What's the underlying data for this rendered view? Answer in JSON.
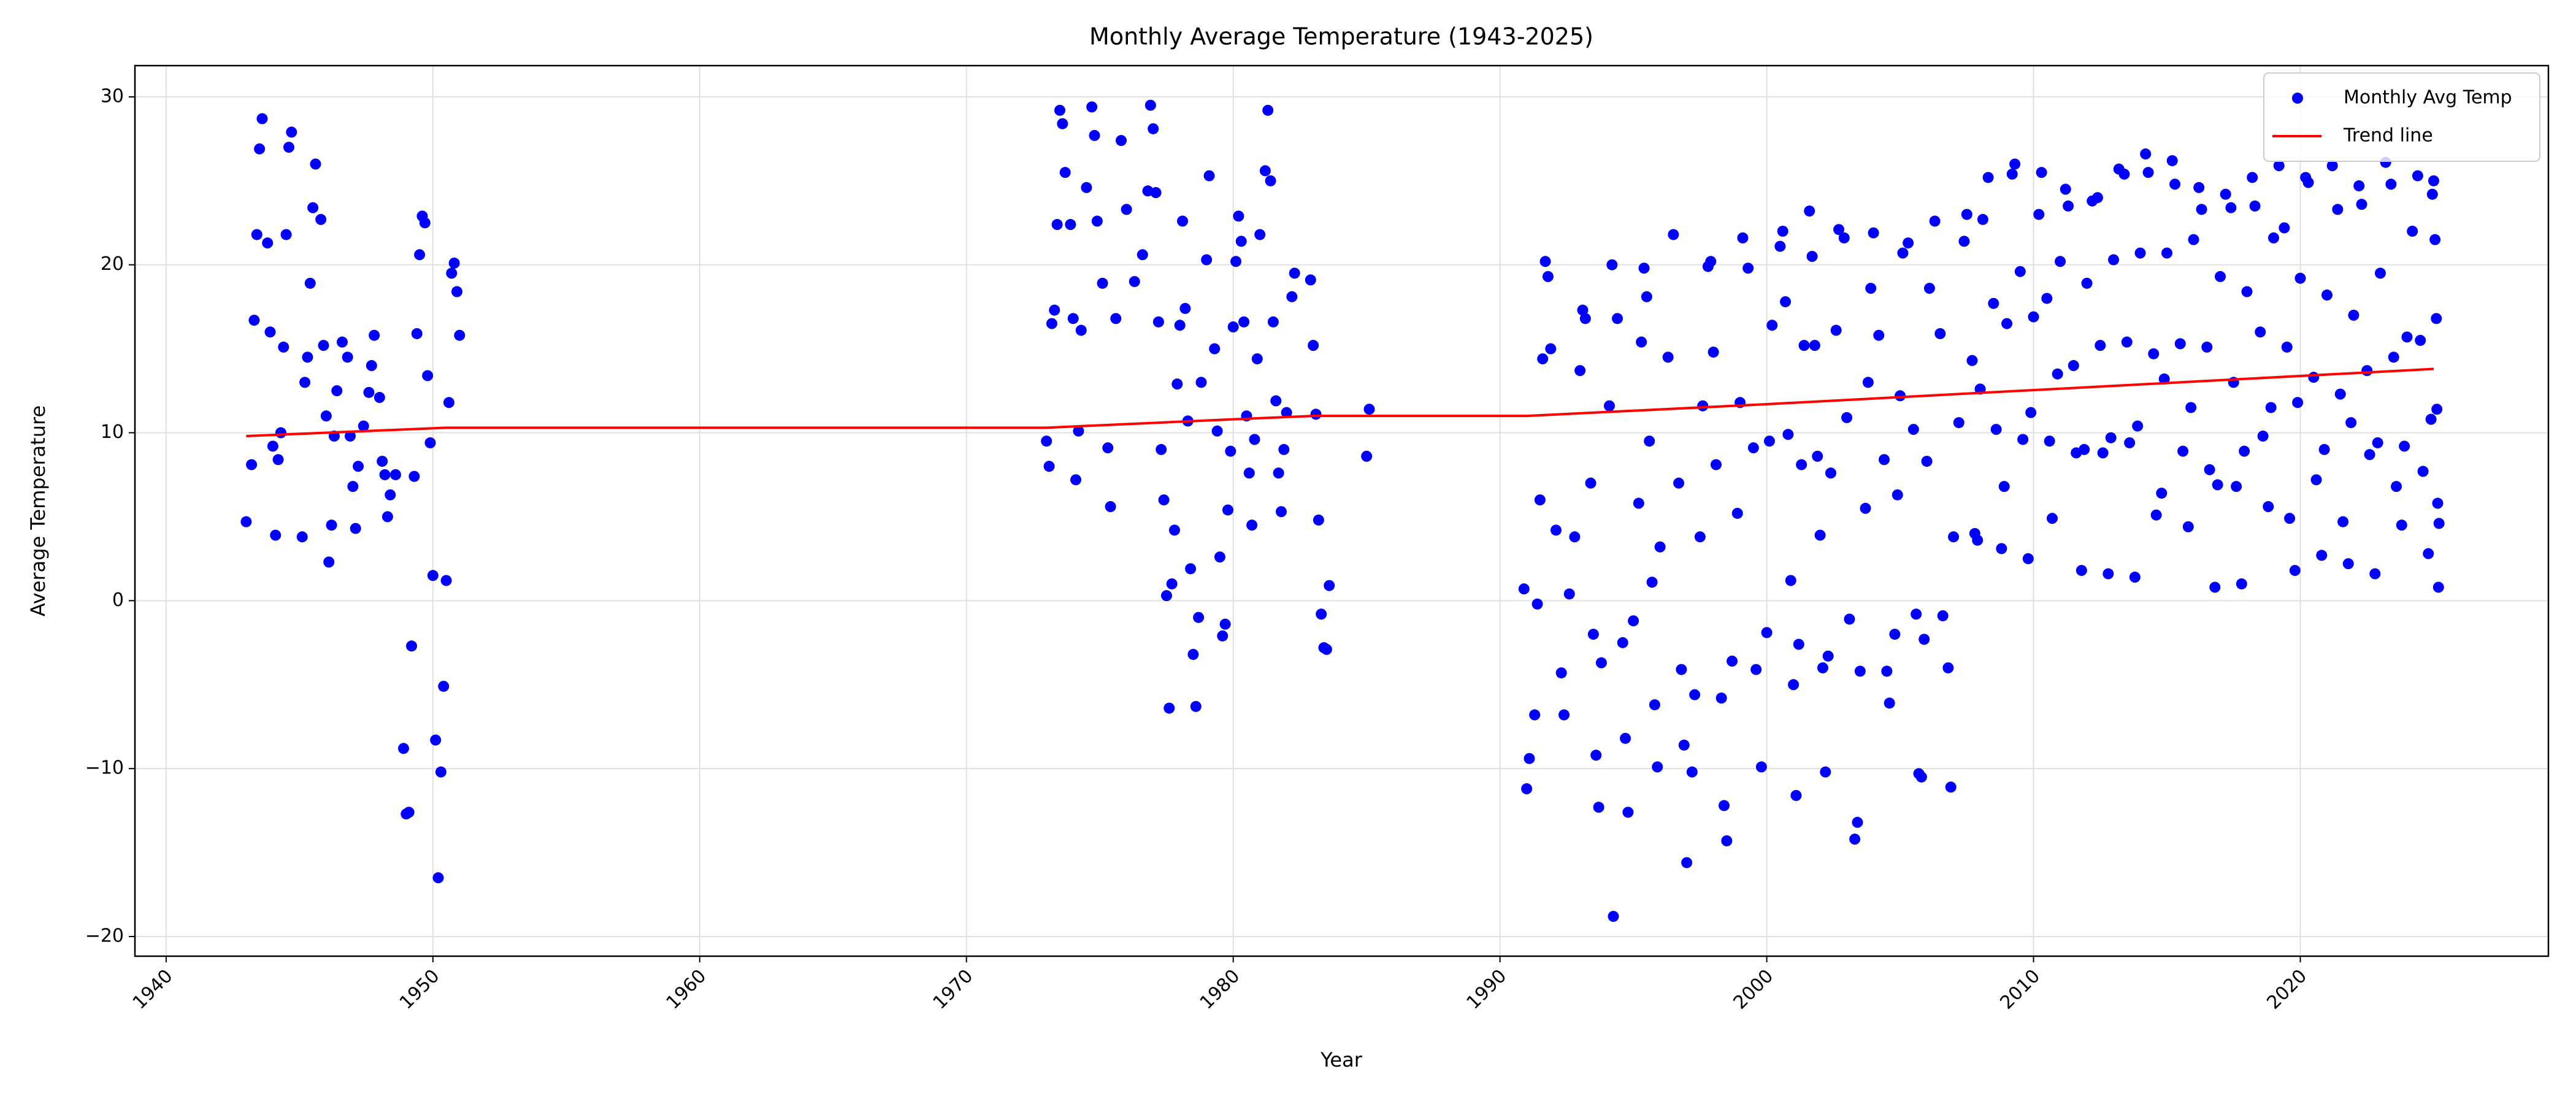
{
  "chart_data": {
    "type": "scatter",
    "title": "Monthly Average Temperature (1943-2025)",
    "x_label": "Year",
    "y_label": "Average Temperature",
    "xlim": [
      1938.83,
      2029.3
    ],
    "ylim": [
      -21.17,
      31.86
    ],
    "xticks": [
      1940,
      1950,
      1960,
      1970,
      1980,
      1990,
      2000,
      2010,
      2020
    ],
    "yticks": [
      {
        "value": -20,
        "label": "−20"
      },
      {
        "value": -10,
        "label": "−10"
      },
      0,
      10,
      20,
      30
    ],
    "grid": true,
    "legend": "upper right",
    "series": [
      {
        "name": "Monthly Avg Temp",
        "type": "scatter",
        "color": "#0000ff",
        "x": [
          1943.0,
          1943.2,
          1943.3,
          1943.4,
          1943.5,
          1943.6,
          1943.8,
          1943.9,
          1944.0,
          1944.1,
          1944.2,
          1944.3,
          1944.4,
          1944.5,
          1944.6,
          1944.7,
          1945.1,
          1945.2,
          1945.3,
          1945.4,
          1945.5,
          1945.6,
          1945.8,
          1945.9,
          1946.0,
          1946.1,
          1946.2,
          1946.3,
          1946.4,
          1946.6,
          1946.8,
          1946.9,
          1947.0,
          1947.1,
          1947.2,
          1947.4,
          1947.6,
          1947.7,
          1947.8,
          1948.0,
          1948.1,
          1948.2,
          1948.3,
          1948.4,
          1948.6,
          1948.9,
          1949.0,
          1949.1,
          1949.2,
          1949.3,
          1949.4,
          1949.5,
          1949.6,
          1949.7,
          1949.8,
          1949.9,
          1950.0,
          1950.1,
          1950.2,
          1950.3,
          1950.4,
          1950.5,
          1950.6,
          1950.7,
          1950.8,
          1950.9,
          1951.0,
          1973.0,
          1973.1,
          1973.2,
          1973.3,
          1973.4,
          1973.5,
          1973.6,
          1973.7,
          1973.9,
          1974.0,
          1974.1,
          1974.2,
          1974.3,
          1974.5,
          1974.7,
          1974.8,
          1974.9,
          1975.1,
          1975.3,
          1975.4,
          1975.6,
          1975.8,
          1976.0,
          1976.3,
          1976.6,
          1976.8,
          1976.9,
          1977.0,
          1977.1,
          1977.2,
          1977.3,
          1977.4,
          1977.5,
          1977.6,
          1977.7,
          1977.8,
          1977.9,
          1978.0,
          1978.1,
          1978.2,
          1978.3,
          1978.4,
          1978.5,
          1978.6,
          1978.7,
          1978.8,
          1979.0,
          1979.1,
          1979.3,
          1979.4,
          1979.5,
          1979.6,
          1979.7,
          1979.8,
          1979.9,
          1980.0,
          1980.1,
          1980.2,
          1980.3,
          1980.4,
          1980.5,
          1980.6,
          1980.7,
          1980.8,
          1980.9,
          1981.0,
          1981.2,
          1981.3,
          1981.4,
          1981.5,
          1981.6,
          1981.7,
          1981.8,
          1981.9,
          1982.0,
          1982.2,
          1982.3,
          1982.9,
          1983.0,
          1983.1,
          1983.2,
          1983.3,
          1983.4,
          1983.5,
          1983.6,
          1985.0,
          1985.1,
          1990.9,
          1991.0,
          1991.1,
          1991.3,
          1991.4,
          1991.5,
          1991.6,
          1991.7,
          1991.8,
          1991.9,
          1992.1,
          1992.3,
          1992.4,
          1992.6,
          1992.8,
          1993.0,
          1993.1,
          1993.2,
          1993.4,
          1993.5,
          1993.6,
          1993.7,
          1993.8,
          1994.1,
          1994.2,
          1994.25,
          1994.4,
          1994.6,
          1994.7,
          1994.8,
          1995.0,
          1995.2,
          1995.3,
          1995.4,
          1995.5,
          1995.6,
          1995.7,
          1995.8,
          1995.9,
          1996.0,
          1996.3,
          1996.5,
          1996.7,
          1996.8,
          1996.9,
          1997.0,
          1997.2,
          1997.3,
          1997.5,
          1997.6,
          1997.8,
          1997.9,
          1998.0,
          1998.1,
          1998.3,
          1998.4,
          1998.5,
          1998.7,
          1998.9,
          1999.0,
          1999.1,
          1999.3,
          1999.5,
          1999.6,
          1999.8,
          2000.0,
          2000.1,
          2000.2,
          2000.5,
          2000.6,
          2000.7,
          2000.8,
          2000.9,
          2001.0,
          2001.1,
          2001.2,
          2001.3,
          2001.4,
          2001.6,
          2001.7,
          2001.8,
          2001.9,
          2002.0,
          2002.1,
          2002.2,
          2002.3,
          2002.4,
          2002.6,
          2002.7,
          2002.9,
          2003.0,
          2003.1,
          2003.3,
          2003.4,
          2003.5,
          2003.7,
          2003.8,
          2003.9,
          2004.0,
          2004.2,
          2004.4,
          2004.5,
          2004.6,
          2004.8,
          2004.9,
          2005.0,
          2005.1,
          2005.3,
          2005.5,
          2005.6,
          2005.7,
          2005.8,
          2005.9,
          2006.0,
          2006.1,
          2006.3,
          2006.5,
          2006.6,
          2006.8,
          2006.9,
          2007.0,
          2007.2,
          2007.4,
          2007.5,
          2007.7,
          2007.8,
          2007.9,
          2008.0,
          2008.1,
          2008.3,
          2008.5,
          2008.6,
          2008.8,
          2008.9,
          2009.0,
          2009.2,
          2009.3,
          2009.5,
          2009.6,
          2009.8,
          2009.9,
          2010.0,
          2010.2,
          2010.3,
          2010.5,
          2010.6,
          2010.7,
          2010.9,
          2011.0,
          2011.2,
          2011.3,
          2011.5,
          2011.6,
          2011.8,
          2011.9,
          2012.0,
          2012.2,
          2012.4,
          2012.5,
          2012.6,
          2012.8,
          2012.9,
          2013.0,
          2013.2,
          2013.4,
          2013.5,
          2013.6,
          2013.8,
          2013.9,
          2014.0,
          2014.2,
          2014.3,
          2014.5,
          2014.6,
          2014.8,
          2014.9,
          2015.0,
          2015.2,
          2015.3,
          2015.5,
          2015.6,
          2015.8,
          2015.9,
          2016.0,
          2016.2,
          2016.3,
          2016.5,
          2016.6,
          2016.8,
          2016.9,
          2017.0,
          2017.2,
          2017.4,
          2017.5,
          2017.6,
          2017.8,
          2017.9,
          2018.0,
          2018.2,
          2018.3,
          2018.5,
          2018.6,
          2018.8,
          2018.9,
          2019.0,
          2019.2,
          2019.4,
          2019.5,
          2019.6,
          2019.8,
          2019.9,
          2020.0,
          2020.2,
          2020.3,
          2020.5,
          2020.6,
          2020.8,
          2020.9,
          2021.0,
          2021.2,
          2021.4,
          2021.5,
          2021.6,
          2021.8,
          2021.9,
          2022.0,
          2022.2,
          2022.3,
          2022.5,
          2022.6,
          2022.8,
          2022.9,
          2023.0,
          2023.2,
          2023.4,
          2023.5,
          2023.6,
          2023.8,
          2023.9,
          2024.0,
          2024.2,
          2024.4,
          2024.5,
          2024.6,
          2024.8,
          2024.9,
          2024.95,
          2025.0,
          2025.05,
          2025.1,
          2025.12,
          2025.15,
          2025.18,
          2025.2
        ],
        "values": [
          4.7,
          8.1,
          16.7,
          21.8,
          26.9,
          28.7,
          21.3,
          16.0,
          9.2,
          3.9,
          8.4,
          10.0,
          15.1,
          21.8,
          27.0,
          27.9,
          3.8,
          13.0,
          14.5,
          18.9,
          23.4,
          26.0,
          22.7,
          15.2,
          11.0,
          2.3,
          4.5,
          9.8,
          12.5,
          15.4,
          14.5,
          9.8,
          6.8,
          4.3,
          8.0,
          10.4,
          12.4,
          14.0,
          15.8,
          12.1,
          8.3,
          7.5,
          5.0,
          6.3,
          7.5,
          -8.8,
          -12.7,
          -12.6,
          -2.7,
          7.4,
          15.9,
          20.6,
          22.9,
          22.5,
          13.4,
          9.4,
          1.5,
          -8.3,
          -16.5,
          -10.2,
          -5.1,
          1.2,
          11.8,
          19.5,
          20.1,
          18.4,
          15.8,
          9.5,
          8.0,
          16.5,
          17.3,
          22.4,
          29.2,
          28.4,
          25.5,
          22.4,
          16.8,
          7.2,
          10.1,
          16.1,
          24.6,
          29.4,
          27.7,
          22.6,
          18.9,
          9.1,
          5.6,
          16.8,
          27.4,
          23.3,
          19.0,
          20.6,
          24.4,
          29.5,
          28.1,
          24.3,
          16.6,
          9.0,
          6.0,
          0.3,
          -6.4,
          1.0,
          4.2,
          12.9,
          16.4,
          22.6,
          17.4,
          10.7,
          1.9,
          -3.2,
          -6.3,
          -1.0,
          13.0,
          20.3,
          25.3,
          15.0,
          10.1,
          2.6,
          -2.1,
          -1.4,
          5.4,
          8.9,
          16.3,
          20.2,
          22.9,
          21.4,
          16.6,
          11.0,
          7.6,
          4.5,
          9.6,
          14.4,
          21.8,
          25.6,
          29.2,
          25.0,
          16.6,
          11.9,
          7.6,
          5.3,
          9.0,
          11.2,
          18.1,
          19.5,
          19.1,
          15.2,
          11.1,
          4.8,
          -0.8,
          -2.8,
          -2.9,
          0.9,
          8.6,
          11.4,
          0.7,
          -11.2,
          -9.4,
          -6.8,
          -0.2,
          6.0,
          14.4,
          20.2,
          19.3,
          15.0,
          4.2,
          -4.3,
          -6.8,
          0.4,
          3.8,
          13.7,
          17.3,
          16.8,
          7.0,
          -2.0,
          -9.2,
          -12.3,
          -3.7,
          11.6,
          20.0,
          -18.8,
          16.8,
          -2.5,
          -8.2,
          -12.6,
          -1.2,
          5.8,
          15.4,
          19.8,
          18.1,
          9.5,
          1.1,
          -6.2,
          -9.9,
          3.2,
          14.5,
          21.8,
          7.0,
          -4.1,
          -8.6,
          -15.6,
          -10.2,
          -5.6,
          3.8,
          11.6,
          19.9,
          20.2,
          14.8,
          8.1,
          -5.8,
          -12.2,
          -14.3,
          -3.6,
          5.2,
          11.8,
          21.6,
          19.8,
          9.1,
          -4.1,
          -9.9,
          -1.9,
          9.5,
          16.4,
          21.1,
          22.0,
          17.8,
          9.9,
          1.2,
          -5.0,
          -11.6,
          -2.6,
          8.1,
          15.2,
          23.2,
          20.5,
          15.2,
          8.6,
          3.9,
          -4.0,
          -10.2,
          -3.3,
          7.6,
          16.1,
          22.1,
          21.6,
          10.9,
          -1.1,
          -14.2,
          -13.2,
          -4.2,
          5.5,
          13.0,
          18.6,
          21.9,
          15.8,
          8.4,
          -4.2,
          -6.1,
          -2.0,
          6.3,
          12.2,
          20.7,
          21.3,
          10.2,
          -0.8,
          -10.3,
          -10.5,
          -2.3,
          8.3,
          18.6,
          22.6,
          15.9,
          -0.9,
          -4.0,
          -11.1,
          3.8,
          10.6,
          21.4,
          23.0,
          14.3,
          4.0,
          3.6,
          12.6,
          22.7,
          25.2,
          17.7,
          10.2,
          3.1,
          6.8,
          16.5,
          25.4,
          26.0,
          19.6,
          9.6,
          2.5,
          11.2,
          16.9,
          23.0,
          25.5,
          18.0,
          9.5,
          4.9,
          13.5,
          20.2,
          24.5,
          23.5,
          14.0,
          8.8,
          1.8,
          9.0,
          18.9,
          23.8,
          24.0,
          15.2,
          8.8,
          1.6,
          9.7,
          20.3,
          25.7,
          25.4,
          15.4,
          9.4,
          1.4,
          10.4,
          20.7,
          26.6,
          25.5,
          14.7,
          5.1,
          6.4,
          13.2,
          20.7,
          26.2,
          24.8,
          15.3,
          8.9,
          4.4,
          11.5,
          21.5,
          24.6,
          23.3,
          15.1,
          7.8,
          0.8,
          6.9,
          19.3,
          24.2,
          23.4,
          13.0,
          6.8,
          1.0,
          8.9,
          18.4,
          25.2,
          23.5,
          16.0,
          9.8,
          5.6,
          11.5,
          21.6,
          25.9,
          22.2,
          15.1,
          4.9,
          1.8,
          11.8,
          19.2,
          25.2,
          24.9,
          13.3,
          7.2,
          2.7,
          9.0,
          18.2,
          25.9,
          23.3,
          12.3,
          4.7,
          2.2,
          10.6,
          17.0,
          24.7,
          23.6,
          13.7,
          8.7,
          1.6,
          9.4,
          19.5,
          26.1,
          24.8,
          14.5,
          6.8,
          4.5,
          9.2,
          15.7,
          22.0,
          25.3,
          15.5,
          7.7,
          2.8,
          10.8,
          24.2,
          25.0,
          21.5,
          16.8,
          11.4,
          5.8,
          0.8,
          4.6
        ]
      },
      {
        "name": "Trend line",
        "type": "line",
        "color": "#ff0000",
        "x": [
          1943,
          1950.5,
          1973,
          1980,
          1983,
          1991,
          2000,
          2025
        ],
        "values": [
          9.8,
          10.3,
          10.3,
          10.8,
          11.0,
          11.0,
          11.7,
          13.8
        ]
      }
    ]
  }
}
